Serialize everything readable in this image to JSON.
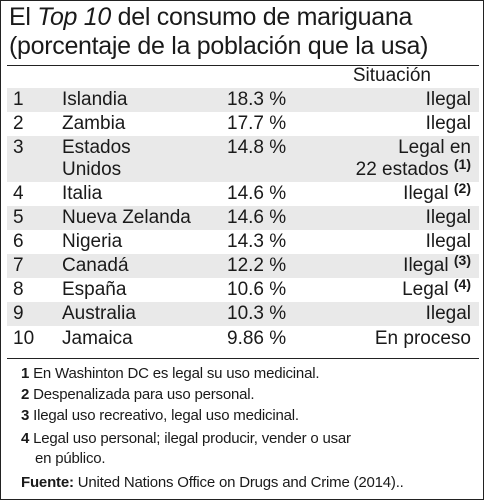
{
  "title": {
    "pre": "El ",
    "em": "Top 10",
    "post": " del consumo de mariguana",
    "line2": "(porcentaje de la población que la usa)"
  },
  "header": {
    "status_label": "Situación"
  },
  "rows": [
    {
      "rank": "1",
      "country": "Islandia",
      "pct": "18.3 %",
      "status": "Ilegal",
      "note": ""
    },
    {
      "rank": "2",
      "country": "Zambia",
      "pct": "17.7 %",
      "status": "Ilegal",
      "note": ""
    },
    {
      "rank": "3",
      "country": "Estados",
      "country2": "Unidos",
      "pct": "14.8 %",
      "status": "Legal en",
      "status2": "22 estados",
      "note": "(1)"
    },
    {
      "rank": "4",
      "country": "Italia",
      "pct": "14.6 %",
      "status": "Ilegal",
      "note": "(2)"
    },
    {
      "rank": "5",
      "country": "Nueva Zelanda",
      "pct": "14.6 %",
      "status": "Ilegal",
      "note": ""
    },
    {
      "rank": "6",
      "country": "Nigeria",
      "pct": "14.3 %",
      "status": "Ilegal",
      "note": ""
    },
    {
      "rank": "7",
      "country": "Canadá",
      "pct": "12.2 %",
      "status": "Ilegal",
      "note": "(3)"
    },
    {
      "rank": "8",
      "country": "España",
      "pct": "10.6 %",
      "status": "Legal",
      "note": "(4)"
    },
    {
      "rank": "9",
      "country": "Australia",
      "pct": "10.3 %",
      "status": "Ilegal",
      "note": ""
    },
    {
      "rank": "10",
      "country": "Jamaica",
      "pct": "9.86 %",
      "status": "En proceso",
      "note": ""
    }
  ],
  "notes": [
    {
      "num": "1",
      "text": "En Washinton DC es legal su uso medicinal."
    },
    {
      "num": "2",
      "text": "Despenalizada para uso personal."
    },
    {
      "num": "3",
      "text": "Ilegal uso recreativo, legal uso medicinal."
    },
    {
      "num": "4",
      "text": "Legal uso personal; ilegal producir, vender o usar",
      "cont": "en público."
    }
  ],
  "source": {
    "label": "Fuente:",
    "text": " United Nations Office on Drugs and Crime (2014).."
  },
  "colors": {
    "shade": "#e9e9e9",
    "text": "#1a1a1a",
    "rule": "#222222"
  }
}
